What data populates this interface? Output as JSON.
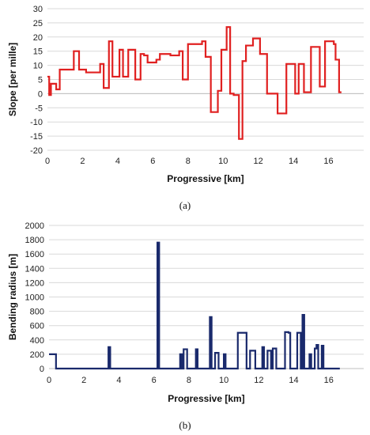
{
  "charts": [
    {
      "caption": "(a)",
      "chart_data": {
        "type": "line",
        "title": "",
        "xlabel": "Progressive [km]",
        "ylabel": "Slope [per mille]",
        "xlim": [
          0,
          18
        ],
        "ylim": [
          -20,
          30
        ],
        "xticks": [
          0,
          2,
          4,
          6,
          8,
          10,
          12,
          14,
          16
        ],
        "yticks": [
          -20,
          -15,
          -10,
          -5,
          0,
          5,
          10,
          15,
          20,
          25,
          30
        ],
        "grid": "horizontal",
        "series": [
          {
            "color": "#e02020",
            "step": true,
            "x": [
              0.0,
              0.1,
              0.2,
              0.5,
              0.7,
              1.5,
              1.8,
              2.2,
              3.0,
              3.2,
              3.5,
              3.7,
              4.1,
              4.3,
              4.6,
              5.0,
              5.3,
              5.5,
              5.7,
              6.2,
              6.4,
              7.0,
              7.5,
              7.7,
              8.0,
              8.8,
              9.0,
              9.3,
              9.7,
              9.9,
              10.2,
              10.4,
              10.6,
              10.9,
              11.1,
              11.3,
              11.7,
              12.1,
              12.5,
              13.1,
              13.6,
              14.1,
              14.3,
              14.6,
              15.0,
              15.5,
              15.8,
              16.3,
              16.4,
              16.6
            ],
            "y": [
              6,
              -0.5,
              3.5,
              1.5,
              8.5,
              15,
              8.5,
              7.5,
              10.5,
              2,
              18.5,
              6,
              15.5,
              6,
              15.5,
              5,
              14,
              13.5,
              11,
              12,
              14,
              13.5,
              15,
              5,
              17.5,
              18.5,
              13,
              -6.5,
              1,
              15.5,
              23.5,
              0,
              -0.5,
              -16,
              11.5,
              17,
              19.5,
              14,
              0,
              -7,
              10.5,
              0,
              10.5,
              0.5,
              16.5,
              2.5,
              18.5,
              17.5,
              12,
              0.5
            ]
          }
        ]
      }
    },
    {
      "caption": "(b)",
      "chart_data": {
        "type": "line",
        "title": "",
        "xlabel": "Progressive [km]",
        "ylabel": "Bending radius [m]",
        "xlim": [
          0,
          18
        ],
        "ylim": [
          0,
          2000
        ],
        "xticks": [
          0,
          2,
          4,
          6,
          8,
          10,
          12,
          14,
          16
        ],
        "yticks": [
          0,
          200,
          400,
          600,
          800,
          1000,
          1200,
          1400,
          1600,
          1800,
          2000
        ],
        "grid": "horizontal",
        "series": [
          {
            "color": "#1a2a6c",
            "step": true,
            "x": [
              0.0,
              0.4,
              3.4,
              3.5,
              6.2,
              6.3,
              7.5,
              7.6,
              7.7,
              7.9,
              8.4,
              8.5,
              9.2,
              9.3,
              9.5,
              9.7,
              10.0,
              10.1,
              10.8,
              11.3,
              11.5,
              11.8,
              12.2,
              12.3,
              12.5,
              12.7,
              12.8,
              13.0,
              13.5,
              13.7,
              13.8,
              14.2,
              14.4,
              14.5,
              14.6,
              14.9,
              15.0,
              15.2,
              15.3,
              15.4,
              15.6,
              15.7,
              16.5
            ],
            "y": [
              200,
              0,
              300,
              0,
              1760,
              0,
              200,
              0,
              270,
              0,
              270,
              0,
              720,
              0,
              220,
              0,
              200,
              0,
              500,
              0,
              250,
              0,
              300,
              0,
              250,
              0,
              280,
              0,
              510,
              500,
              0,
              500,
              0,
              750,
              0,
              200,
              0,
              280,
              330,
              0,
              320,
              0,
              0
            ]
          }
        ]
      }
    }
  ]
}
